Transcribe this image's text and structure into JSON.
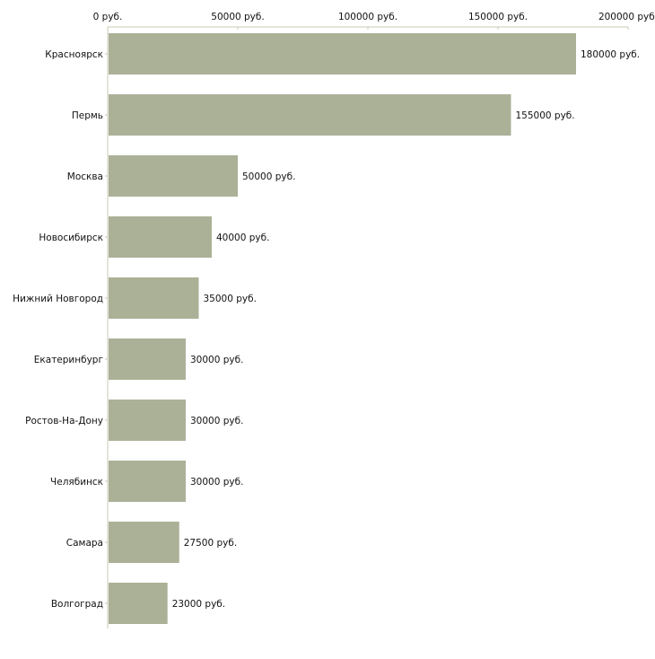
{
  "chart_data": {
    "type": "bar",
    "orientation": "horizontal",
    "title": "",
    "xlabel": "",
    "ylabel": "",
    "xlim": [
      0,
      200000
    ],
    "x_ticks": [
      0,
      50000,
      100000,
      150000,
      200000
    ],
    "x_tick_labels": [
      "0 руб.",
      "50000 руб.",
      "100000 руб.",
      "150000 руб.",
      "200000 руб."
    ],
    "axis_position": "top",
    "grid": false,
    "categories": [
      "Красноярск",
      "Пермь",
      "Москва",
      "Новосибирск",
      "Нижний Новгород",
      "Екатеринбург",
      "Ростов-На-Дону",
      "Челябинск",
      "Самара",
      "Волгоград"
    ],
    "values": [
      180000,
      155000,
      50000,
      40000,
      35000,
      30000,
      30000,
      30000,
      27500,
      23000
    ],
    "value_labels": [
      "180000 руб.",
      "155000 руб.",
      "50000 руб.",
      "40000 руб.",
      "35000 руб.",
      "30000 руб.",
      "30000 руб.",
      "30000 руб.",
      "27500 руб.",
      "23000 руб."
    ],
    "colors": {
      "bar": "#abb197",
      "axis": "#c9c9b4"
    }
  }
}
